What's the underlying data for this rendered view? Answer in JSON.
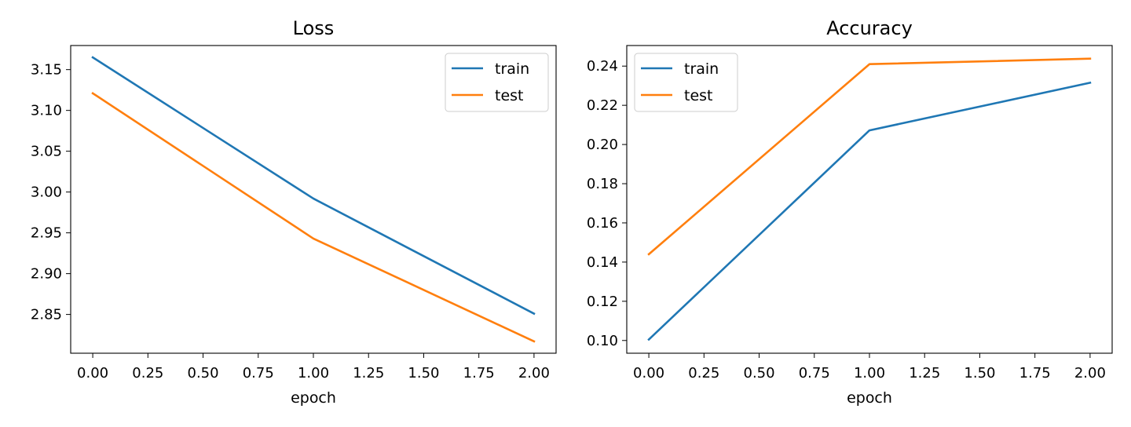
{
  "chart_data": [
    {
      "type": "line",
      "title": "Loss",
      "xlabel": "epoch",
      "ylabel": "",
      "x": [
        0,
        1,
        2
      ],
      "xlim": [
        -0.1,
        2.1
      ],
      "ylim": [
        2.8025,
        3.1795
      ],
      "xticks": [
        "0.00",
        "0.25",
        "0.50",
        "0.75",
        "1.00",
        "1.25",
        "1.50",
        "1.75",
        "2.00"
      ],
      "yticks": [
        "2.85",
        "2.90",
        "2.95",
        "3.00",
        "3.05",
        "3.10",
        "3.15"
      ],
      "grid": false,
      "legend_position": "upper right",
      "series": [
        {
          "name": "train",
          "color": "#1f77b4",
          "values": [
            3.165,
            2.992,
            2.851
          ]
        },
        {
          "name": "test",
          "color": "#ff7f0e",
          "values": [
            3.121,
            2.943,
            2.817
          ]
        }
      ]
    },
    {
      "type": "line",
      "title": "Accuracy",
      "xlabel": "epoch",
      "ylabel": "",
      "x": [
        0,
        1,
        2
      ],
      "xlim": [
        -0.1,
        2.1
      ],
      "ylim": [
        0.0935,
        0.2505
      ],
      "xticks": [
        "0.00",
        "0.25",
        "0.50",
        "0.75",
        "1.00",
        "1.25",
        "1.50",
        "1.75",
        "2.00"
      ],
      "yticks": [
        "0.10",
        "0.12",
        "0.14",
        "0.16",
        "0.18",
        "0.20",
        "0.22",
        "0.24"
      ],
      "grid": false,
      "legend_position": "upper left",
      "series": [
        {
          "name": "train",
          "color": "#1f77b4",
          "values": [
            0.1005,
            0.2072,
            0.2315
          ]
        },
        {
          "name": "test",
          "color": "#ff7f0e",
          "values": [
            0.144,
            0.241,
            0.2438
          ]
        }
      ]
    }
  ]
}
